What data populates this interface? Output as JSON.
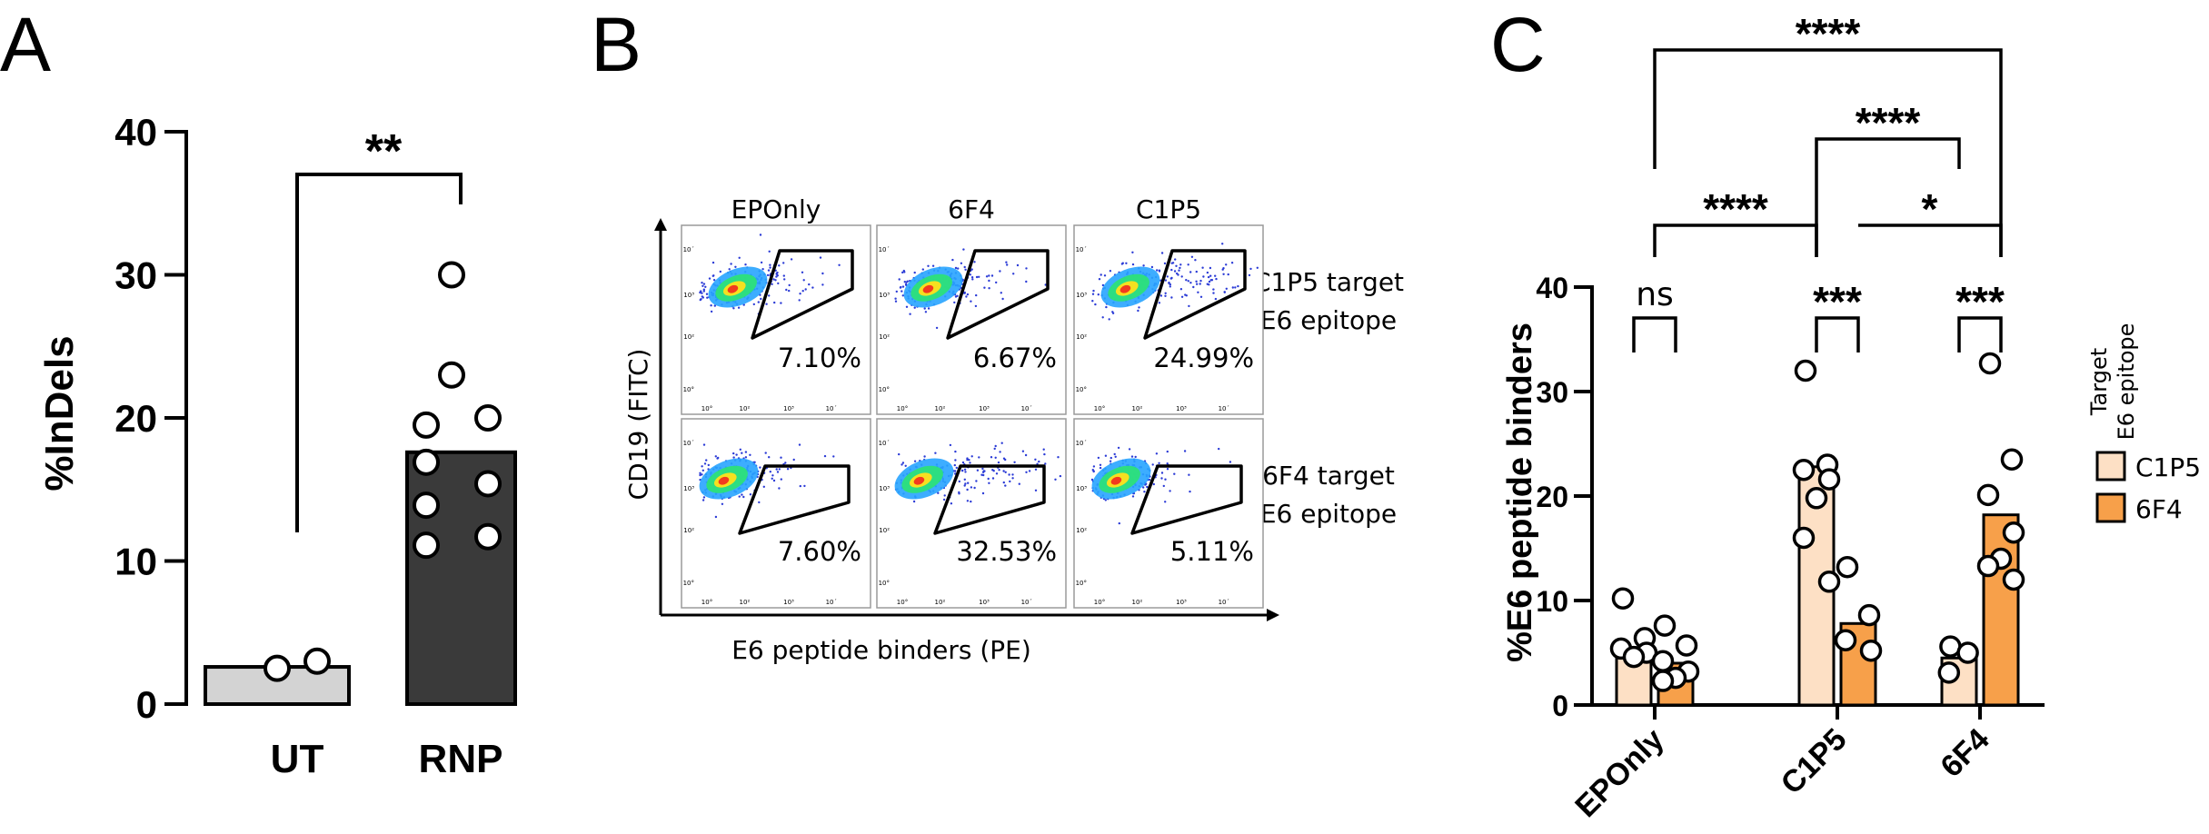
{
  "panels": {
    "a": "A",
    "b": "B",
    "c": "C"
  },
  "chart_data": [
    {
      "type": "bar",
      "ylabel": "%InDels",
      "ylim": [
        0,
        40
      ],
      "yticks": [
        "0",
        "10",
        "20",
        "30",
        "40"
      ],
      "categories": [
        "UT",
        "RNP"
      ],
      "values": [
        2.6,
        17.6
      ],
      "bar_colors": [
        "#d3d3d3",
        "#3a3a3a"
      ],
      "points": [
        [
          2.5,
          3.0
        ],
        [
          30.0,
          23.0,
          19.5,
          20.0,
          16.9,
          15.4,
          13.9,
          11.1,
          11.7
        ]
      ],
      "significance": [
        {
          "label": "**",
          "from": "UT",
          "to": "RNP"
        }
      ]
    },
    {
      "type": "table",
      "xlabel": "E6 peptide binders (PE)",
      "ylabel": "CD19 (FITC)",
      "columns": [
        "EPOnly",
        "6F4",
        "C1P5"
      ],
      "rows": [
        "C1P5 target\nE6 epitope",
        "6F4 target\nE6 epitope"
      ],
      "row_labels": [
        {
          "line1": "C1P5 target",
          "line2": "E6 epitope"
        },
        {
          "line1": "6F4 target",
          "line2": "E6 epitope"
        }
      ],
      "gate_percentages": [
        [
          "7.10%",
          "6.67%",
          "24.99%"
        ],
        [
          "7.60%",
          "32.53%",
          "5.11%"
        ]
      ],
      "axis_ticks": [
        "10°",
        "10²",
        "10³",
        "10´"
      ]
    },
    {
      "type": "bar",
      "ylabel": "%E6 peptide binders",
      "ylim": [
        0,
        40
      ],
      "yticks": [
        "0",
        "10",
        "20",
        "30",
        "40"
      ],
      "categories": [
        "EPOnly",
        "C1P5",
        "6F4"
      ],
      "legend_title": [
        "Target",
        "E6 epitope"
      ],
      "legend_position": "right",
      "series": [
        {
          "name": "C1P5",
          "color": "#fde0c5",
          "values": [
            5.5,
            22.8,
            4.5
          ],
          "points": [
            [
              10.2,
              6.4,
              5.4,
              5.0,
              4.6
            ],
            [
              32.0,
              23.0,
              22.5,
              21.6,
              19.8,
              16.0,
              11.8
            ],
            [
              5.6,
              5.0,
              3.1
            ]
          ]
        },
        {
          "name": "6F4",
          "color": "#f7a04a",
          "values": [
            4.0,
            7.8,
            18.2
          ],
          "points": [
            [
              7.6,
              5.7,
              4.2,
              3.2,
              2.6,
              2.3
            ],
            [
              13.2,
              8.6,
              6.2,
              5.2
            ],
            [
              32.7,
              23.5,
              20.1,
              16.5,
              14.0,
              13.3,
              12.0
            ]
          ]
        }
      ],
      "significance": [
        {
          "label": "ns",
          "from": "EPOnly/C1P5",
          "to": "EPOnly/6F4"
        },
        {
          "label": "***",
          "from": "C1P5/C1P5",
          "to": "C1P5/6F4"
        },
        {
          "label": "***",
          "from": "6F4/C1P5",
          "to": "6F4/6F4"
        },
        {
          "label": "****",
          "from": "EPOnly",
          "to": "C1P5/C1P5"
        },
        {
          "label": "*",
          "from": "C1P5/6F4",
          "to": "6F4/6F4"
        },
        {
          "label": "****",
          "from": "C1P5/C1P5",
          "to": "6F4/C1P5"
        },
        {
          "label": "****",
          "from": "EPOnly",
          "to": "6F4/6F4"
        }
      ]
    }
  ]
}
